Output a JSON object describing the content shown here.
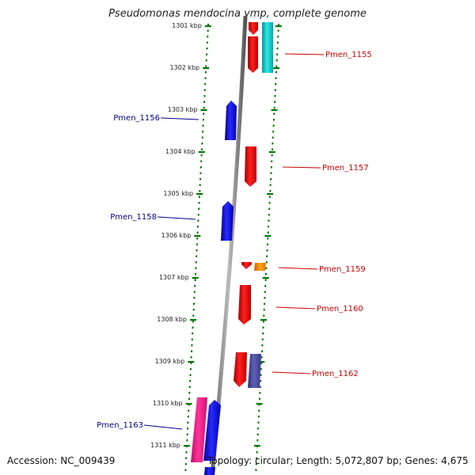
{
  "title": "Pseudomonas mendocina ymp, complete genome",
  "footer": {
    "accession": "Accession: NC_009439",
    "summary": "Topology: circular; Length: 5,072,807 bp; Genes: 4,675"
  },
  "colors": {
    "forward": "#ff0000",
    "reverse": "#0000ff",
    "rna": "#00cccc",
    "orange": "#ff8800",
    "magenta": "#ff1493",
    "slate": "#4b4ba0",
    "tick": "#007700",
    "label_forward": "#cc0000",
    "label_reverse": "#00008b"
  },
  "ticks": [
    "1301 kbp",
    "1302 kbp",
    "1303 kbp",
    "1304 kbp",
    "1305 kbp",
    "1306 kbp",
    "1307 kbp",
    "1308 kbp",
    "1309 kbp",
    "1310 kbp",
    "1311 kbp"
  ],
  "gene_labels": [
    {
      "name": "Pmen_1155",
      "strand": "forward"
    },
    {
      "name": "Pmen_1156",
      "strand": "reverse"
    },
    {
      "name": "Pmen_1157",
      "strand": "forward"
    },
    {
      "name": "Pmen_1158",
      "strand": "reverse"
    },
    {
      "name": "Pmen_1159",
      "strand": "forward"
    },
    {
      "name": "Pmen_1160",
      "strand": "forward"
    },
    {
      "name": "Pmen_1162",
      "strand": "forward"
    },
    {
      "name": "Pmen_1163",
      "strand": "reverse"
    }
  ]
}
